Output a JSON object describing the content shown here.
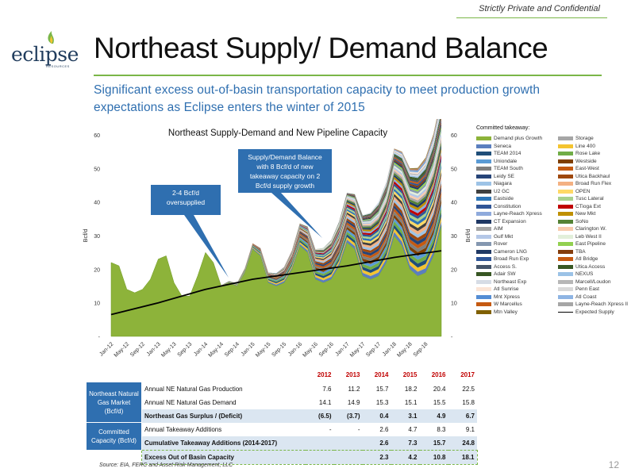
{
  "header": {
    "confidential": "Strictly Private and Confidential",
    "title": "Northeast Supply/ Demand Balance",
    "subtitle": "Significant excess out-of-basin transportation capacity to meet production growth expectations as Eclipse enters the winter of 2015"
  },
  "logo": {
    "text": "eclipse",
    "sub": "RESOURCES"
  },
  "colors": {
    "green": "#7ab648",
    "blue": "#2f6fb0",
    "red": "#c00000",
    "shade": "#dbe6f1"
  },
  "chart_data": {
    "type": "area",
    "title": "Northeast Supply-Demand and New Pipeline Capacity",
    "ylabel": "Bcf/d",
    "ylabel_right": "Bcf/d",
    "ylim": [
      0,
      60
    ],
    "yticks": [
      "-",
      "10",
      "20",
      "30",
      "40",
      "50",
      "60"
    ],
    "x_ticks": [
      "Jan-12",
      "May-12",
      "Sep-12",
      "Jan-13",
      "May-13",
      "Sep-13",
      "Jan-14",
      "May-14",
      "Sep-14",
      "Jan-15",
      "May-15",
      "Sep-15",
      "Jan-16",
      "May-16",
      "Sep-16",
      "Jan-17",
      "May-17",
      "Sep-17",
      "Jan-18",
      "May-18",
      "Sep-18"
    ],
    "series": [
      {
        "name": "Demand plus Growth",
        "x": [
          "Jan-12",
          "Mar-12",
          "May-12",
          "Jul-12",
          "Sep-12",
          "Nov-12",
          "Jan-13",
          "Mar-13",
          "May-13",
          "Jul-13",
          "Sep-13",
          "Nov-13",
          "Jan-14",
          "Mar-14",
          "May-14",
          "Jul-14",
          "Sep-14",
          "Nov-14",
          "Jan-15",
          "Mar-15",
          "May-15",
          "Jul-15",
          "Sep-15",
          "Nov-15",
          "Jan-16",
          "Mar-16",
          "May-16",
          "Jul-16",
          "Sep-16",
          "Nov-16",
          "Jan-17",
          "Mar-17",
          "May-17",
          "Jul-17",
          "Sep-17",
          "Nov-17",
          "Jan-18",
          "Mar-18",
          "May-18",
          "Jul-18",
          "Sep-18",
          "Nov-18",
          "Jan-19"
        ],
        "values": [
          22,
          21,
          14,
          13,
          14,
          17,
          23,
          24,
          16,
          12,
          12,
          18,
          25,
          22,
          15,
          16,
          15,
          19,
          26,
          24,
          16,
          15,
          16,
          20,
          27,
          25,
          17,
          16,
          17,
          21,
          28,
          26,
          18,
          17,
          18,
          22,
          30,
          27,
          20,
          18,
          19,
          24,
          33
        ]
      },
      {
        "name": "Expected Supply",
        "x": [
          "Jan-12",
          "Jan-13",
          "Jan-14",
          "Jan-15",
          "Jan-16",
          "Jan-17",
          "Jan-18",
          "Jan-19"
        ],
        "values": [
          6.5,
          10.0,
          14.0,
          17.0,
          19.0,
          21.0,
          23.5,
          25.5
        ]
      }
    ],
    "legend_title": "Committed takeaway:",
    "legend": [
      [
        "Demand plus Growth",
        "#8db33a"
      ],
      [
        "Storage",
        "#a6a6a6"
      ],
      [
        "Seneca",
        "#5b7fbf"
      ],
      [
        "Line 400",
        "#f4c430"
      ],
      [
        "TEAM 2014",
        "#1f4e79"
      ],
      [
        "Rose Lake",
        "#70ad47"
      ],
      [
        "Uniondale",
        "#5a9bd5"
      ],
      [
        "Westside",
        "#7f3f00"
      ],
      [
        "TEAM South",
        "#7f7f7f"
      ],
      [
        "East-West",
        "#c55a11"
      ],
      [
        "Leidy SE",
        "#264478"
      ],
      [
        "Utica Backhaul",
        "#9e480e"
      ],
      [
        "Niagara",
        "#9dc3e6"
      ],
      [
        "Broad Run Flex",
        "#f4b183"
      ],
      [
        "U2 GC",
        "#404040"
      ],
      [
        "OPEN",
        "#ffd966"
      ],
      [
        "Eastside",
        "#2e75b6"
      ],
      [
        "Tusc Lateral",
        "#a9d18e"
      ],
      [
        "Constitution",
        "#2f5597"
      ],
      [
        "CTioga Ext",
        "#c00000"
      ],
      [
        "Layne-Reach Xpress",
        "#8faadc"
      ],
      [
        "New Mkt",
        "#bf9000"
      ],
      [
        "CT Expansion",
        "#1f3864"
      ],
      [
        "SoNo",
        "#548235"
      ],
      [
        "AIM",
        "#a5a5a5"
      ],
      [
        "Clarington W.",
        "#f8cbad"
      ],
      [
        "Gulf Mkt",
        "#b4c7e7"
      ],
      [
        "Leb West II",
        "#e2efda"
      ],
      [
        "Rover",
        "#8497b0"
      ],
      [
        "East Pipeline",
        "#92d050"
      ],
      [
        "Cameron LNG",
        "#203864"
      ],
      [
        "TBA",
        "#843c0c"
      ],
      [
        "Broad Run Exp",
        "#2e5597"
      ],
      [
        "Atl Bridge",
        "#c65911"
      ],
      [
        "Access S.",
        "#44546a"
      ],
      [
        "Utica Access",
        "#385723"
      ],
      [
        "Adair SW",
        "#375623"
      ],
      [
        "NEXUS",
        "#9bc2e6"
      ],
      [
        "Northeast Exp",
        "#d6dce5"
      ],
      [
        "Marcell/Loudon",
        "#b7b7b7"
      ],
      [
        "Atl Sunrise",
        "#fbe5d6"
      ],
      [
        "Penn East",
        "#d9d9d9"
      ],
      [
        "Mnt Xpress",
        "#548dd4"
      ],
      [
        "Atl Coast",
        "#8eb4e3"
      ],
      [
        "W Marcellus",
        "#c55a11"
      ],
      [
        "Layne-Reach Xpress II",
        "#a6a6a6"
      ],
      [
        "Mtn Valley",
        "#806000"
      ],
      [
        "Expected Supply",
        "#000000"
      ]
    ],
    "callouts": [
      "2-4 Bcf/d oversupplied",
      "Supply/Demand Balance with 8 Bcf/d of new takeaway capacity on 2 Bcf/d supply growth"
    ]
  },
  "table": {
    "years": [
      "2012",
      "2013",
      "2014",
      "2015",
      "2016",
      "2017"
    ],
    "groups": [
      {
        "label": "Northeast Natural Gas Market (Bcf/d)",
        "rows": [
          {
            "label": "Annual NE Natural Gas Production",
            "values": [
              "7.6",
              "11.2",
              "15.7",
              "18.2",
              "20.4",
              "22.5"
            ],
            "bold": false
          },
          {
            "label": "Annual NE Natural Gas Demand",
            "values": [
              "14.1",
              "14.9",
              "15.3",
              "15.1",
              "15.5",
              "15.8"
            ],
            "bold": false
          },
          {
            "label": "Northeast Gas Surplus / (Deficit)",
            "values": [
              "(6.5)",
              "(3.7)",
              "0.4",
              "3.1",
              "4.9",
              "6.7"
            ],
            "bold": true
          }
        ]
      },
      {
        "label": "Committed Capacity (Bcf/d)",
        "rows": [
          {
            "label": "Annual Takeaway Additions",
            "values": [
              "-",
              "-",
              "2.6",
              "4.7",
              "8.3",
              "9.1"
            ],
            "bold": false
          },
          {
            "label": "Cumulative Takeaway Additions (2014-2017)",
            "values": [
              "",
              "",
              "2.6",
              "7.3",
              "15.7",
              "24.8"
            ],
            "bold": true
          }
        ]
      }
    ],
    "excess": {
      "label": "Excess Out of Basin Capacity",
      "values": [
        "",
        "",
        "2.3",
        "4.2",
        "10.8",
        "18.1"
      ]
    }
  },
  "footer": {
    "source": "Source:    EIA, FERC and Asset Risk Management, LLC",
    "page": "12"
  }
}
